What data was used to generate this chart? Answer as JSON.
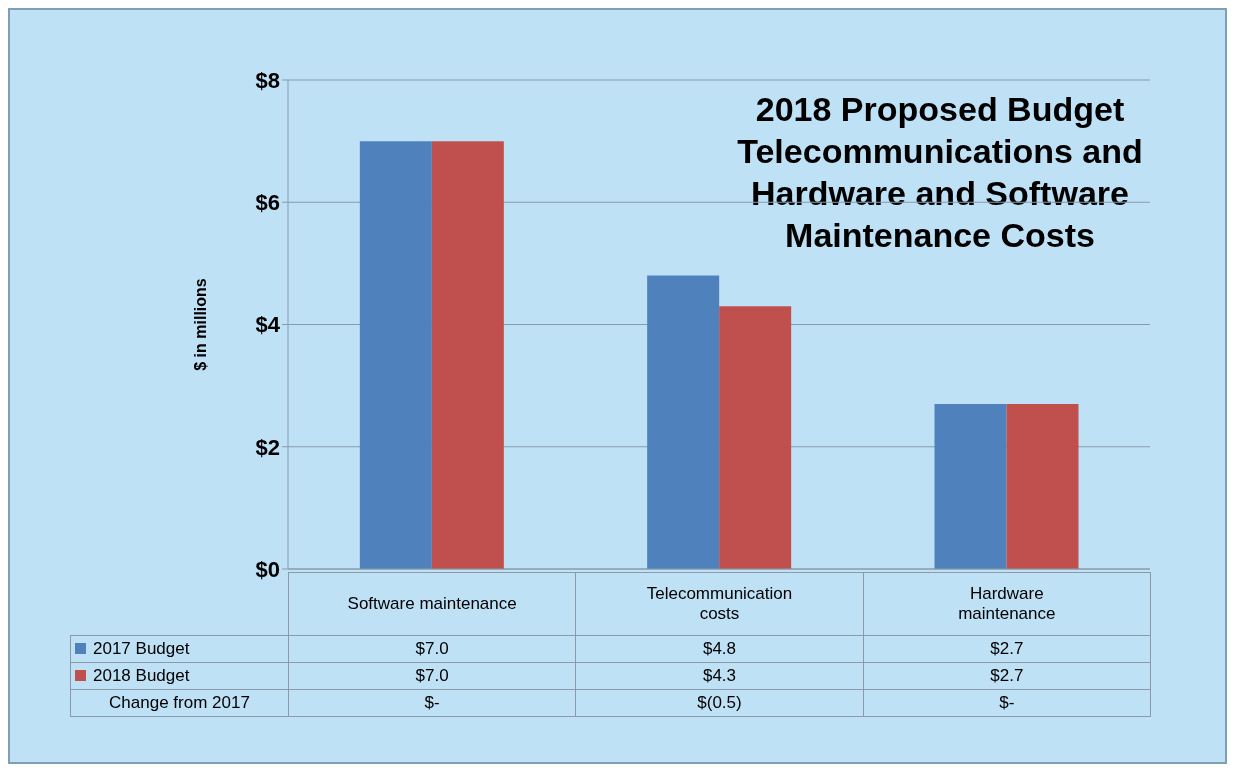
{
  "chart_data": {
    "type": "bar",
    "title": "2018 Proposed Budget Telecommunications and Hardware and Software Maintenance Costs",
    "ylabel": "$ in millions",
    "categories": [
      "Software maintenance",
      "Telecommunication costs",
      "Hardware maintenance"
    ],
    "series": [
      {
        "name": "2017 Budget",
        "color": "#4f81bd",
        "values": [
          7.0,
          4.8,
          2.7
        ],
        "value_labels": [
          "$7.0",
          "$4.8",
          "$2.7"
        ]
      },
      {
        "name": "2018 Budget",
        "color": "#c0504d",
        "values": [
          7.0,
          4.3,
          2.7
        ],
        "value_labels": [
          "$7.0",
          "$4.3",
          "$2.7"
        ]
      }
    ],
    "annotations": [
      "Change from 2017",
      "$-",
      "$(0.5)",
      "$-"
    ],
    "ylim": [
      0,
      8
    ],
    "yticks": [
      {
        "value": 0,
        "label": "$0"
      },
      {
        "value": 2,
        "label": "$2"
      },
      {
        "value": 4,
        "label": "$4"
      },
      {
        "value": 6,
        "label": "$6"
      },
      {
        "value": 8,
        "label": "$8"
      }
    ],
    "grid": "y",
    "legend": "bottom left"
  }
}
